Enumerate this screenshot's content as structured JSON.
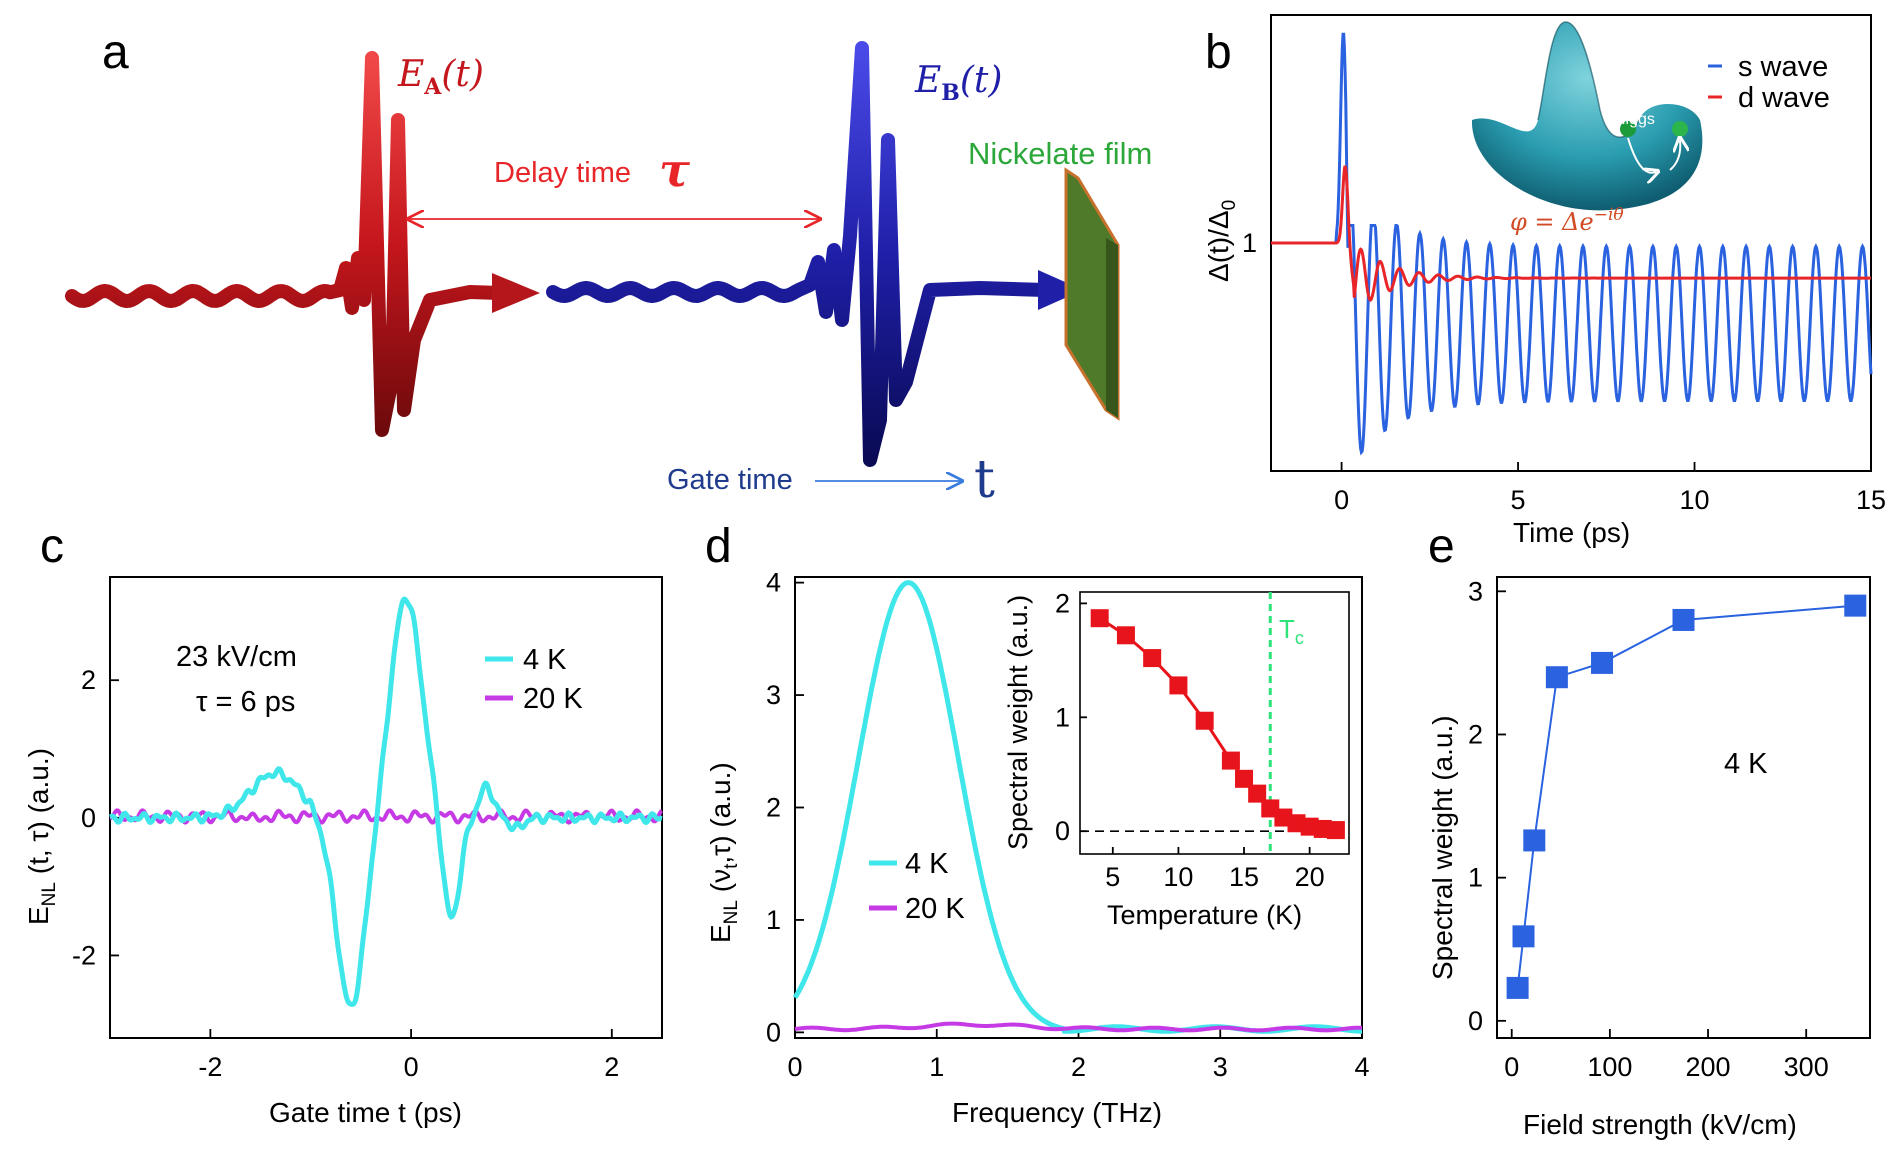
{
  "panel_letters": {
    "a": "a",
    "b": "b",
    "c": "c",
    "d": "d",
    "e": "e"
  },
  "panel_a": {
    "pulse_a_label": "E",
    "pulse_a_sub": "A",
    "pulse_a_arg": "(t)",
    "pulse_b_label": "E",
    "pulse_b_sub": "B",
    "pulse_b_arg": "(t)",
    "delay_text": "Delay time",
    "delay_symbol": "τ",
    "gate_text": "Gate time",
    "gate_symbol": "t",
    "film_label": "Nickelate film",
    "colors": {
      "pulse_a": "#c4161c",
      "pulse_b": "#1f1fa8",
      "film": "#4f7a2a",
      "film_label": "#2ca83a",
      "gate": "#1f3b8c"
    }
  },
  "chart_data": [
    {
      "id": "b",
      "type": "line",
      "xlabel": "Time (ps)",
      "ylabel": "Δ(t)/Δ",
      "ylabel_sub": "0",
      "xlim": [
        -2,
        15
      ],
      "ylim": [
        0.35,
        1.65
      ],
      "xticks": [
        0,
        5,
        10,
        15
      ],
      "yticks": [
        1
      ],
      "inset_label_higgs": "Higgs",
      "inset_formula": "φ = Δe",
      "inset_formula_sup": "−iθ",
      "series": [
        {
          "name": "s wave",
          "color": "#2a62e0",
          "model": "s_wave"
        },
        {
          "name": "d wave",
          "color": "#e8262a",
          "model": "d_wave"
        }
      ]
    },
    {
      "id": "c",
      "type": "line",
      "xlabel": "Gate time t (ps)",
      "ylabel": "E",
      "ylabel_sub": "NL",
      "ylabel_rest": " (t, τ) (a.u.)",
      "xlim": [
        -3,
        2.5
      ],
      "ylim": [
        -3.2,
        3.5
      ],
      "xticks": [
        -2,
        0,
        2
      ],
      "yticks": [
        -2,
        0,
        2
      ],
      "annotation_1": "23 kV/cm",
      "annotation_2": "τ = 6 ps",
      "series": [
        {
          "name": "4 K",
          "color": "#3fe6ea",
          "model": "c_4K"
        },
        {
          "name": "20 K",
          "color": "#c63ae6",
          "model": "c_20K"
        }
      ]
    },
    {
      "id": "d",
      "type": "line",
      "xlabel": "Frequency (THz)",
      "ylabel": "E",
      "ylabel_sub": "NL",
      "ylabel_rest": " (ν",
      "ylabel_sub2": "t",
      "ylabel_rest2": ",τ) (a.u.)",
      "xlim": [
        0,
        4
      ],
      "ylim": [
        -0.05,
        4.05
      ],
      "xticks": [
        0,
        1,
        2,
        3,
        4
      ],
      "yticks": [
        0,
        1,
        2,
        3,
        4
      ],
      "series": [
        {
          "name": "4 K",
          "color": "#3fe6ea",
          "peak_x": 0.8,
          "peak_y": 4.0
        },
        {
          "name": "20 K",
          "color": "#c63ae6",
          "peak_x": 1.25,
          "peak_y": 0.07
        }
      ],
      "inset": {
        "type": "line",
        "xlabel": "Temperature (K)",
        "ylabel": "Spectral weight (a.u.)",
        "xlim": [
          2.5,
          23
        ],
        "ylim": [
          -0.2,
          2.1
        ],
        "xticks": [
          5,
          10,
          15,
          20
        ],
        "yticks": [
          0,
          1,
          2
        ],
        "tc_label": "T",
        "tc_sub": "c",
        "tc_value": 17,
        "color": "#e8141b",
        "x": [
          4,
          6,
          8,
          10,
          12,
          14,
          15,
          16,
          17,
          18,
          19,
          20,
          21,
          22
        ],
        "y": [
          1.87,
          1.72,
          1.52,
          1.28,
          0.97,
          0.62,
          0.46,
          0.33,
          0.2,
          0.12,
          0.07,
          0.04,
          0.02,
          0.01
        ]
      }
    },
    {
      "id": "e",
      "type": "scatter",
      "xlabel": "Field strength (kV/cm)",
      "ylabel": "Spectral weight (a.u.)",
      "xlim": [
        -15,
        365
      ],
      "ylim": [
        -0.12,
        3.1
      ],
      "xticks": [
        0,
        100,
        200,
        300
      ],
      "yticks": [
        0,
        1,
        2,
        3
      ],
      "annotation": "4 K",
      "color": "#2a62e0",
      "x": [
        6,
        12,
        23,
        46,
        92,
        175,
        350
      ],
      "y": [
        0.23,
        0.59,
        1.26,
        2.4,
        2.5,
        2.8,
        2.9
      ]
    }
  ]
}
